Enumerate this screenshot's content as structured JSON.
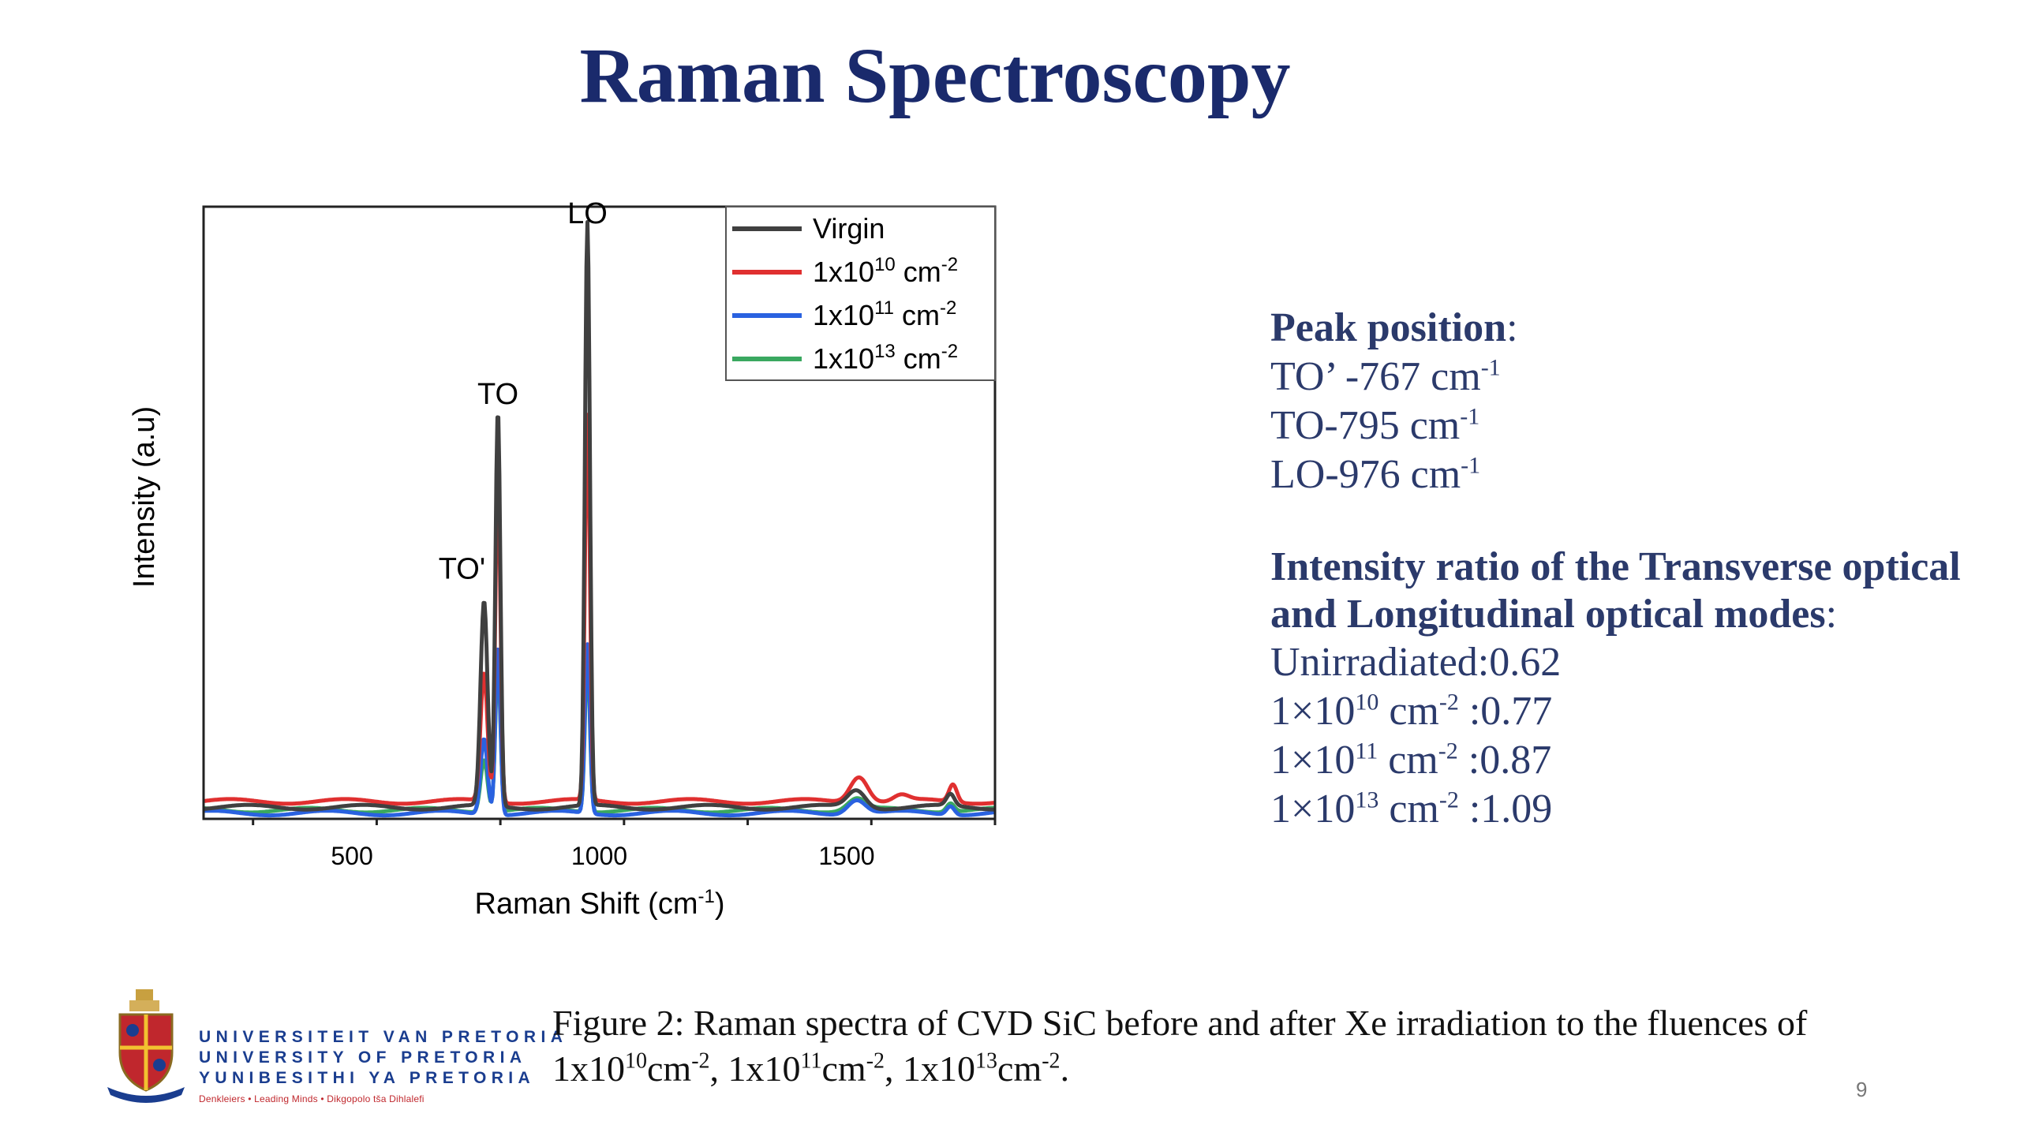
{
  "slide": {
    "title": "Raman Spectroscopy",
    "page_number": "9"
  },
  "notes": {
    "peak_heading": "Peak position",
    "peak_heading_suffix": ":",
    "peaks": [
      {
        "label": "TO’ -767 cm",
        "sup": "-1"
      },
      {
        "label": "TO-795 cm",
        "sup": "-1"
      },
      {
        "label": "LO-976 cm",
        "sup": "-1"
      }
    ],
    "ratio_heading_1": "Intensity ratio of the Transverse optical",
    "ratio_heading_2": "and Longitudinal optical modes",
    "ratio_heading_suffix": ":",
    "unirradiated": "Unirradiated:0.62",
    "ratios": [
      {
        "base": "1×10",
        "exp": "10",
        "unit": " cm",
        "unit_exp": "-2",
        "value": " :0.77"
      },
      {
        "base": "1×10",
        "exp": "11",
        "unit": " cm",
        "unit_exp": "-2",
        "value": " :0.87"
      },
      {
        "base": "1×10",
        "exp": "13",
        "unit": " cm",
        "unit_exp": "-2",
        "value": " :1.09"
      }
    ]
  },
  "caption": {
    "line1": "Figure 2:  Raman spectra of CVD SiC before and after Xe irradiation to the fluences of",
    "l2_a": "1x10",
    "l2_a_exp": "10",
    "l2_b": "cm",
    "l2_b_exp": "-2",
    "l2_c": ", 1x10",
    "l2_c_exp": "11",
    "l2_d": "cm",
    "l2_d_exp": "-2",
    "l2_e": ", 1x10",
    "l2_e_exp": "13",
    "l2_f": "cm",
    "l2_f_exp": "-2",
    "l2_g": "."
  },
  "logo": {
    "line1": "UNIVERSITEIT VAN PRETORIA",
    "line2": "UNIVERSITY OF PRETORIA",
    "line3": "YUNIBESITHI YA PRETORIA",
    "motto": "Denkleiers • Leading Minds • Dikgopolo tša Dihlalefi"
  },
  "colors": {
    "title": "#1a2a6c",
    "notes": "#2b3a6b",
    "virgin": "#404040",
    "f10": "#e03030",
    "f11": "#2a62e0",
    "f13": "#3aa860"
  },
  "chart_data": {
    "type": "line",
    "xlabel": "Raman Shift (cm",
    "xlabel_sup": "-1",
    "xlabel_close": ")",
    "ylabel": "Intensity (a.u)",
    "xlim": [
      200,
      1800
    ],
    "ylim": [
      0,
      1.05
    ],
    "xticks": [
      500,
      1000,
      1500
    ],
    "yticks_shown": false,
    "grid": false,
    "legend_placement": "top-right",
    "annotations": [
      {
        "text": "LO",
        "x": 976,
        "y": 1.03
      },
      {
        "text": "TO",
        "x": 795,
        "y": 0.72
      },
      {
        "text": "TO'",
        "x": 767,
        "y": 0.42
      }
    ],
    "series": [
      {
        "name": "Virgin",
        "name_base": "Virgin",
        "name_exp": "",
        "name_unit": "",
        "name_unit_exp": "",
        "color": "#404040",
        "baseline": 0.02,
        "peaks": [
          [
            767,
            0.35,
            7
          ],
          [
            795,
            0.68,
            5
          ],
          [
            976,
            1.0,
            5
          ],
          [
            1520,
            0.03,
            18
          ],
          [
            1710,
            0.02,
            8
          ]
        ]
      },
      {
        "name": "1x1010 cm-2",
        "name_base": "1x10",
        "name_exp": "10",
        "name_unit": " cm",
        "name_unit_exp": "-2",
        "color": "#e03030",
        "baseline": 0.03,
        "peaks": [
          [
            767,
            0.22,
            7
          ],
          [
            795,
            0.57,
            5
          ],
          [
            976,
            0.66,
            5
          ],
          [
            1525,
            0.045,
            18
          ],
          [
            1610,
            0.01,
            15
          ],
          [
            1715,
            0.03,
            8
          ]
        ]
      },
      {
        "name": "1x1011 cm-2",
        "name_base": "1x10",
        "name_exp": "11",
        "name_unit": " cm",
        "name_unit_exp": "-2",
        "color": "#2a62e0",
        "baseline": 0.01,
        "peaks": [
          [
            767,
            0.13,
            7
          ],
          [
            795,
            0.29,
            5
          ],
          [
            976,
            0.29,
            5
          ],
          [
            1520,
            0.025,
            18
          ],
          [
            1710,
            0.015,
            8
          ]
        ]
      },
      {
        "name": "1x1013 cm-2",
        "name_base": "1x10",
        "name_exp": "13",
        "name_unit": " cm",
        "name_unit_exp": "-2",
        "color": "#3aa860",
        "baseline": 0.015,
        "peaks": [
          [
            767,
            0.09,
            7
          ],
          [
            795,
            0.26,
            5
          ],
          [
            976,
            0.26,
            5
          ],
          [
            1520,
            0.02,
            18
          ],
          [
            1710,
            0.015,
            8
          ]
        ]
      }
    ]
  }
}
